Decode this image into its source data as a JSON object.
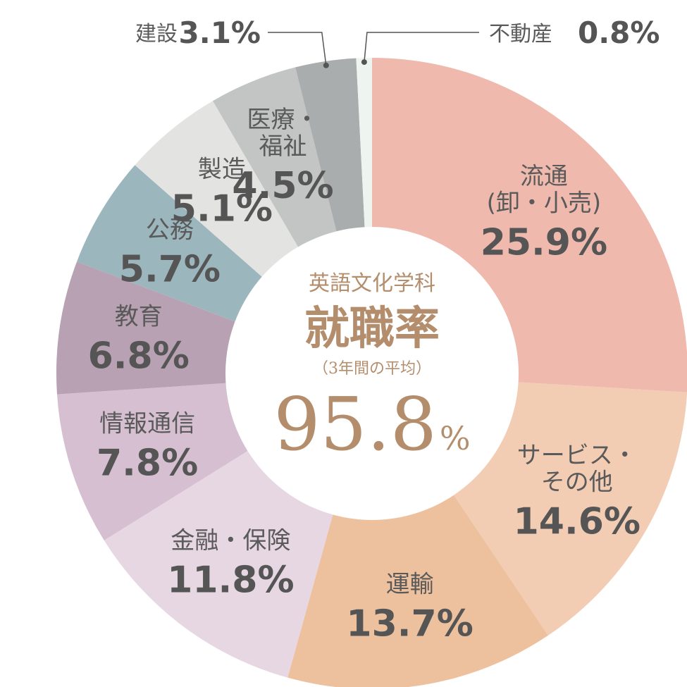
{
  "center": {
    "subtitle": "英語文化学科",
    "title": "就職率",
    "note": "（3年間の平均）",
    "rate": "95.8",
    "unit": "%"
  },
  "chart_data": {
    "type": "pie",
    "donut": true,
    "slices": [
      {
        "lines": [
          "流通",
          "(卸・小売)"
        ],
        "label": "流通(卸・小売)",
        "value": 25.9,
        "pct": "25.9%",
        "color": "#efb9ae"
      },
      {
        "lines": [
          "サービス・",
          "その他"
        ],
        "label": "サービス・その他",
        "value": 14.6,
        "pct": "14.6%",
        "color": "#f3ccb4"
      },
      {
        "lines": [
          "運輸"
        ],
        "label": "運輸",
        "value": 13.7,
        "pct": "13.7%",
        "color": "#eec19e"
      },
      {
        "lines": [
          "金融・保険"
        ],
        "label": "金融・保険",
        "value": 11.8,
        "pct": "11.8%",
        "color": "#e6d7e2"
      },
      {
        "lines": [
          "情報通信"
        ],
        "label": "情報通信",
        "value": 7.8,
        "pct": "7.8%",
        "color": "#d5bfd1"
      },
      {
        "lines": [
          "教育"
        ],
        "label": "教育",
        "value": 6.8,
        "pct": "6.8%",
        "color": "#b7a1b2"
      },
      {
        "lines": [
          "公務"
        ],
        "label": "公務",
        "value": 5.7,
        "pct": "5.7%",
        "color": "#9cb6bd"
      },
      {
        "lines": [
          "製造"
        ],
        "label": "製造",
        "value": 5.1,
        "pct": "5.1%",
        "color": "#e3e3e2"
      },
      {
        "lines": [
          "医療・",
          "福祉"
        ],
        "label": "医療・福祉",
        "value": 4.5,
        "pct": "4.5%",
        "color": "#c3c5c4"
      },
      {
        "lines": [
          "建設"
        ],
        "label": "建設",
        "value": 3.1,
        "pct": "3.1%",
        "color": "#a9adad",
        "outside": true
      },
      {
        "lines": [
          "不動産"
        ],
        "label": "不動産",
        "value": 0.8,
        "pct": "0.8%",
        "color": "#eef4ef",
        "outside": true
      }
    ]
  }
}
